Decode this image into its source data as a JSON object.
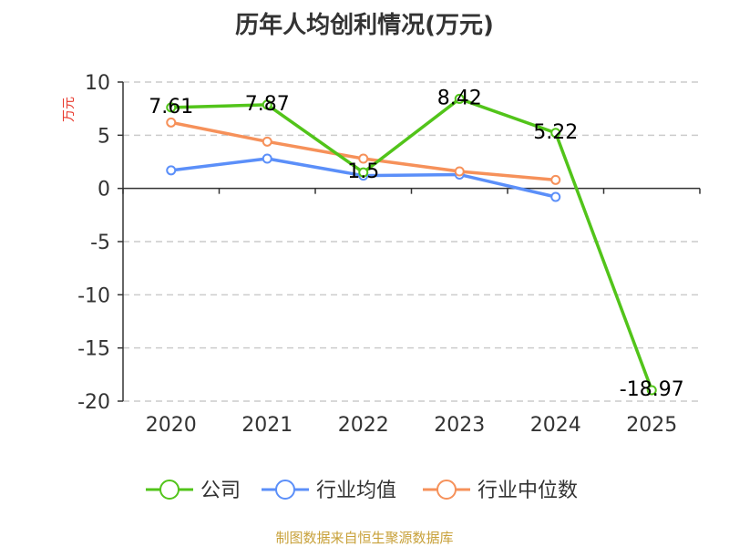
{
  "chart_data": {
    "type": "line",
    "title": "历年人均创利情况(万元)",
    "ylabel": "万元",
    "xlabel": "",
    "categories": [
      "2020",
      "2021",
      "2022",
      "2023",
      "2024",
      "2025"
    ],
    "ylim": [
      -20,
      10
    ],
    "yticks": [
      10,
      5,
      0,
      -5,
      -10,
      -15,
      -20
    ],
    "grid": true,
    "legend_position": "bottom",
    "series": [
      {
        "name": "公司",
        "color": "#52c41a",
        "values": [
          7.61,
          7.87,
          1.5,
          8.42,
          5.22,
          -18.97
        ],
        "labels": [
          "7.61",
          "7.87",
          "1.5",
          "8.42",
          "5.22",
          "-18.97"
        ]
      },
      {
        "name": "行业均值",
        "color": "#5b8ff9",
        "values": [
          1.7,
          2.8,
          1.2,
          1.3,
          -0.8,
          null
        ]
      },
      {
        "name": "行业中位数",
        "color": "#f6915a",
        "values": [
          6.2,
          4.4,
          2.8,
          1.6,
          0.8,
          null
        ]
      }
    ]
  },
  "ylabel_color": "#e8372b",
  "source": {
    "text": "制图数据来自恒生聚源数据库",
    "color": "#c8a13a"
  }
}
